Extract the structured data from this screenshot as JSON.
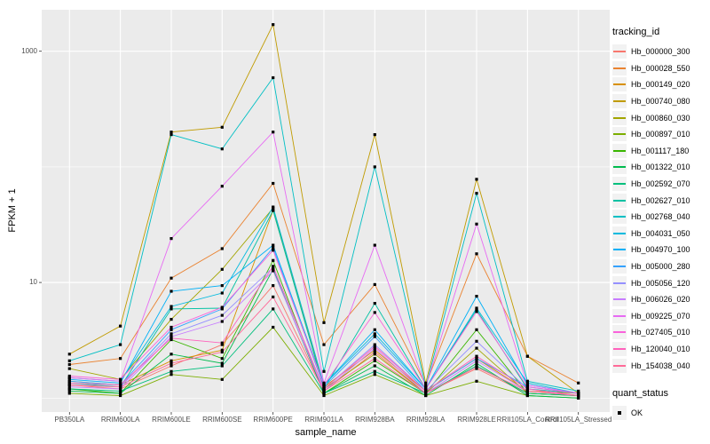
{
  "axes": {
    "x_title": "sample_name",
    "y_title": "FPKM + 1"
  },
  "legend": {
    "tracking_title": "tracking_id",
    "quant_title": "quant_status",
    "quant_label": "OK"
  },
  "colors": {
    "panel_bg": "#EBEBEB",
    "grid": "#FFFFFF",
    "point": "#000000",
    "tick_mark": "#333333",
    "tick_text": "#4D4D4D",
    "legend_key_bg": "#F2F2F2"
  },
  "chart_data": {
    "type": "line",
    "title": "",
    "xlabel": "sample_name",
    "ylabel": "FPKM + 1",
    "y_scale": "log10",
    "grid": true,
    "legend_position": "right",
    "y_ticks": [
      {
        "value": 1000,
        "label": "1000"
      },
      {
        "value": 10,
        "label": "10"
      }
    ],
    "y_minor_gridlines": [
      1,
      100
    ],
    "ylim": [
      0.76,
      2300
    ],
    "point_shape": "filled-square",
    "categories": [
      "PB350LA",
      "RRIM600LA",
      "RRIM600LE",
      "RRIM600SE",
      "RRIM600PE",
      "RRIM901LA",
      "RRIM928BA",
      "RRIM928LA",
      "RRIM928LE",
      "RRII105LA_Control",
      "RRII105LA_Stressed"
    ],
    "series": [
      {
        "name": "Hb_000000_300",
        "color": "#F8766D",
        "values": [
          1.3,
          1.2,
          1.9,
          2.9,
          9.4,
          1.15,
          2.5,
          1.1,
          1.8,
          1.1,
          1.05
        ]
      },
      {
        "name": "Hb_000028_550",
        "color": "#EA8331",
        "values": [
          1.95,
          2.2,
          10.9,
          19.6,
          72,
          2.9,
          9.6,
          1.3,
          17.7,
          2.3,
          1.35
        ]
      },
      {
        "name": "Hb_000149_020",
        "color": "#D89000",
        "values": [
          1.4,
          1.3,
          2.1,
          2.6,
          42,
          1.25,
          2.6,
          1.15,
          2.2,
          1.15,
          1.1
        ]
      },
      {
        "name": "Hb_000740_080",
        "color": "#C09B00",
        "values": [
          2.4,
          4.2,
          200,
          220,
          1700,
          4.5,
          190,
          1.35,
          78,
          2.3,
          1.1
        ]
      },
      {
        "name": "Hb_000860_030",
        "color": "#A3A500",
        "values": [
          1.8,
          1.45,
          4.8,
          13.0,
          44,
          1.2,
          2.4,
          1.1,
          2.7,
          1.1,
          1.05
        ]
      },
      {
        "name": "Hb_000897_010",
        "color": "#7CAE00",
        "values": [
          1.1,
          1.05,
          1.6,
          1.45,
          4.1,
          1.05,
          1.6,
          1.05,
          1.4,
          1.05,
          1.0
        ]
      },
      {
        "name": "Hb_001117_180",
        "color": "#39B600",
        "values": [
          1.2,
          1.1,
          3.2,
          2.2,
          15.5,
          1.1,
          2.1,
          1.1,
          3.9,
          1.1,
          1.05
        ]
      },
      {
        "name": "Hb_001322_010",
        "color": "#00BB4E",
        "values": [
          1.15,
          1.1,
          2.4,
          2.0,
          13.0,
          1.1,
          1.9,
          1.05,
          2.0,
          1.05,
          1.0
        ]
      },
      {
        "name": "Hb_002592_070",
        "color": "#00BF7D",
        "values": [
          1.2,
          1.15,
          1.7,
          1.9,
          5.9,
          1.1,
          1.7,
          1.1,
          1.9,
          1.1,
          1.05
        ]
      },
      {
        "name": "Hb_002627_010",
        "color": "#00C1A3",
        "values": [
          1.35,
          1.25,
          5.9,
          6.0,
          42,
          1.2,
          6.6,
          1.2,
          5.8,
          1.2,
          1.1
        ]
      },
      {
        "name": "Hb_002768_040",
        "color": "#00BFC4",
        "values": [
          2.1,
          2.9,
          190,
          143,
          590,
          1.7,
          100,
          1.25,
          59,
          1.4,
          1.15
        ]
      },
      {
        "name": "Hb_004031_050",
        "color": "#00BADE",
        "values": [
          1.5,
          1.4,
          6.2,
          8.1,
          45,
          1.3,
          3.6,
          1.2,
          6.0,
          1.35,
          1.1
        ]
      },
      {
        "name": "Hb_004970_100",
        "color": "#00B0F6",
        "values": [
          1.45,
          1.35,
          8.4,
          9.4,
          21,
          1.3,
          3.9,
          1.2,
          7.6,
          1.3,
          1.1
        ]
      },
      {
        "name": "Hb_005000_280",
        "color": "#35A2FF",
        "values": [
          1.4,
          1.3,
          3.9,
          5.9,
          20,
          1.25,
          3.4,
          1.15,
          2.2,
          1.25,
          1.1
        ]
      },
      {
        "name": "Hb_005056_120",
        "color": "#9590FF",
        "values": [
          1.3,
          1.25,
          3.6,
          5.2,
          13.5,
          1.2,
          2.9,
          1.15,
          3.1,
          1.2,
          1.05
        ]
      },
      {
        "name": "Hb_006026_020",
        "color": "#C77CFF",
        "values": [
          1.25,
          1.2,
          3.4,
          4.6,
          12.6,
          1.15,
          2.7,
          1.1,
          2.1,
          1.15,
          1.05
        ]
      },
      {
        "name": "Hb_009225_070",
        "color": "#E76BF3",
        "values": [
          1.5,
          1.4,
          24,
          68,
          200,
          1.35,
          21,
          1.25,
          32,
          1.3,
          1.1
        ]
      },
      {
        "name": "Hb_027405_010",
        "color": "#FA62DB",
        "values": [
          1.55,
          1.45,
          4.1,
          6.1,
          19,
          1.3,
          5.5,
          1.2,
          5.6,
          1.25,
          1.1
        ]
      },
      {
        "name": "Hb_120040_010",
        "color": "#FF62BC",
        "values": [
          1.35,
          1.3,
          3.3,
          3.0,
          13.8,
          1.2,
          2.8,
          1.15,
          2.3,
          1.2,
          1.05
        ]
      },
      {
        "name": "Hb_154038_040",
        "color": "#FF6A98",
        "values": [
          1.3,
          1.25,
          2.0,
          2.5,
          7.5,
          1.15,
          2.2,
          1.1,
          1.85,
          1.15,
          1.05
        ]
      }
    ]
  }
}
